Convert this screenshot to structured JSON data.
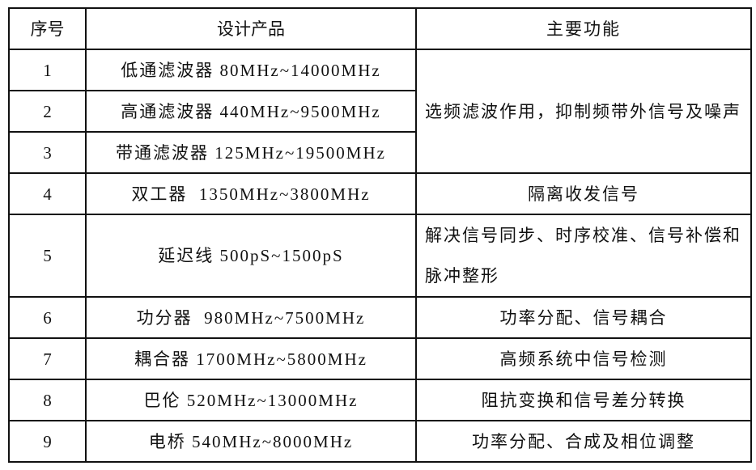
{
  "headers": {
    "index": "序号",
    "product": "设计产品",
    "function": "主要功能"
  },
  "rows": [
    {
      "index": "1",
      "product": "低通滤波器 80MHz~14000MHz"
    },
    {
      "index": "2",
      "product": "高通滤波器 440MHz~9500MHz"
    },
    {
      "index": "3",
      "product": "带通滤波器 125MHz~19500MHz"
    },
    {
      "index": "4",
      "product": "双工器  1350MHz~3800MHz",
      "function": "隔离收发信号"
    },
    {
      "index": "5",
      "product": "延迟线 500pS~1500pS",
      "function": "解决信号同步、时序校准、信号补偿和脉冲整形"
    },
    {
      "index": "6",
      "product": "功分器  980MHz~7500MHz",
      "function": "功率分配、信号耦合"
    },
    {
      "index": "7",
      "product": "耦合器 1700MHz~5800MHz",
      "function": "高频系统中信号检测"
    },
    {
      "index": "8",
      "product": "巴伦 520MHz~13000MHz",
      "function": "阻抗变换和信号差分转换"
    },
    {
      "index": "9",
      "product": "电桥 540MHz~8000MHz",
      "function": "功率分配、合成及相位调整"
    }
  ],
  "merged_function_1_3": "选频滤波作用，抑制频带外信号及噪声"
}
